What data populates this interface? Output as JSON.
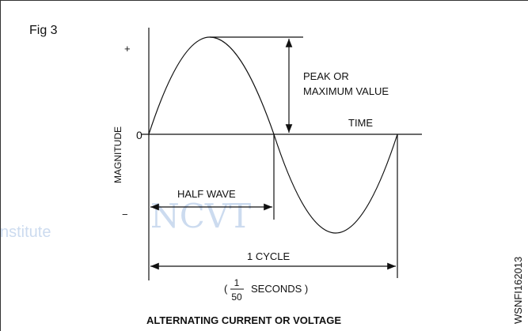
{
  "figure": {
    "label": "Fig 3",
    "plus": "+",
    "zero": "0",
    "minus": "−",
    "y_axis": "MAGNITUDE",
    "peak_line1": "PEAK OR",
    "peak_line2": "MAXIMUM VALUE",
    "time": "TIME",
    "half_wave": "HALF WAVE",
    "cycle": "1 CYCLE",
    "period_open": "(",
    "period_numerator": "1",
    "period_denominator": "50",
    "period_rest": "SECONDS )",
    "caption": "ALTERNATING CURRENT OR VOLTAGE",
    "code": "WSNFI162013"
  },
  "watermark": {
    "institute": "nstitute",
    "ncvt": "NCVT"
  }
}
